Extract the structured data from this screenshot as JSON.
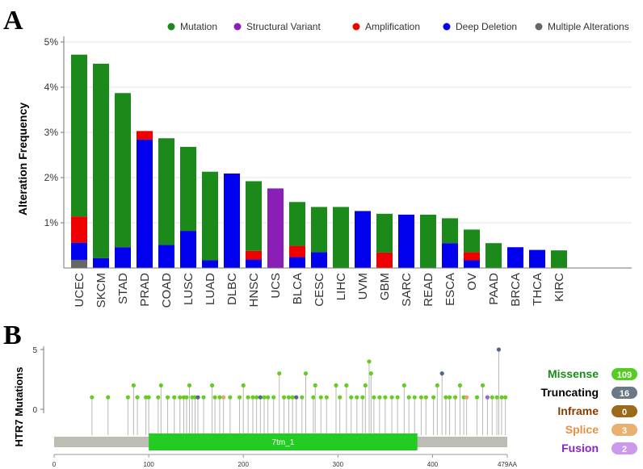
{
  "panel_a": {
    "letter": "A",
    "chart_data": {
      "type": "bar",
      "stacked": true,
      "ylabel": "Alteration Frequency",
      "ylim": [
        0,
        5
      ],
      "yticks": [
        1,
        2,
        3,
        4,
        5
      ],
      "ytick_labels": [
        "1%",
        "2%",
        "3%",
        "4%",
        "5%"
      ],
      "legend_position": "top",
      "categories": [
        "UCEC",
        "SKCM",
        "STAD",
        "PRAD",
        "COAD",
        "LUSC",
        "LUAD",
        "DLBC",
        "HNSC",
        "UCS",
        "BLCA",
        "CESC",
        "LIHC",
        "UVM",
        "GBM",
        "SARC",
        "READ",
        "ESCA",
        "OV",
        "PAAD",
        "BRCA",
        "THCA",
        "KIRC"
      ],
      "series": [
        {
          "name": "Multiple Alterations",
          "color": "#666666",
          "values": [
            0.18,
            0,
            0,
            0,
            0,
            0,
            0,
            0,
            0,
            0,
            0,
            0,
            0,
            0,
            0,
            0,
            0,
            0,
            0,
            0,
            0,
            0,
            0
          ]
        },
        {
          "name": "Deep Deletion",
          "color": "#0000ee",
          "values": [
            0.38,
            0.22,
            0.46,
            2.84,
            0.51,
            0.82,
            0.17,
            2.09,
            0.19,
            0,
            0.24,
            0.35,
            0,
            1.26,
            0,
            1.18,
            0,
            0.55,
            0.17,
            0,
            0.46,
            0.4,
            0
          ]
        },
        {
          "name": "Amplification",
          "color": "#ee0000",
          "values": [
            0.58,
            0,
            0,
            0.19,
            0,
            0,
            0,
            0,
            0.19,
            0,
            0.25,
            0,
            0,
            0,
            0.34,
            0,
            0,
            0,
            0.18,
            0,
            0,
            0,
            0
          ]
        },
        {
          "name": "Structural Variant",
          "color": "#8a1fb8",
          "values": [
            0,
            0,
            0,
            0,
            0,
            0,
            0,
            0,
            0,
            1.76,
            0,
            0,
            0,
            0,
            0,
            0,
            0,
            0,
            0,
            0,
            0,
            0,
            0
          ]
        },
        {
          "name": "Mutation",
          "color": "#1b8a1b",
          "values": [
            3.58,
            4.3,
            3.41,
            0,
            2.36,
            1.86,
            1.96,
            0,
            1.54,
            0,
            0.97,
            1.0,
            1.35,
            0,
            0.86,
            0,
            1.18,
            0.55,
            0.5,
            0.55,
            0,
            0,
            0.39
          ]
        }
      ],
      "legend": [
        {
          "name": "Mutation",
          "color": "#1b8a1b"
        },
        {
          "name": "Structural Variant",
          "color": "#8a1fb8"
        },
        {
          "name": "Amplification",
          "color": "#ee0000"
        },
        {
          "name": "Deep Deletion",
          "color": "#0000ee"
        },
        {
          "name": "Multiple Alterations",
          "color": "#666666"
        }
      ]
    }
  },
  "panel_b": {
    "letter": "B",
    "chart_data": {
      "type": "scatter",
      "subtype": "lollipop",
      "ylabel": "HTR7 Mutations",
      "xlim": [
        0,
        479
      ],
      "ylim": [
        0,
        5
      ],
      "yticks": [
        0,
        5
      ],
      "xticks": [
        0,
        100,
        200,
        300,
        400
      ],
      "end_label": "479AA",
      "domain": {
        "name": "7tm_1",
        "start": 100,
        "end": 384,
        "color": "#22cc22"
      },
      "points": [
        {
          "x": 40,
          "y": 1,
          "t": "m"
        },
        {
          "x": 57,
          "y": 1,
          "t": "m"
        },
        {
          "x": 78,
          "y": 1,
          "t": "m"
        },
        {
          "x": 84,
          "y": 2,
          "t": "m"
        },
        {
          "x": 88,
          "y": 1,
          "t": "m"
        },
        {
          "x": 97,
          "y": 1,
          "t": "m"
        },
        {
          "x": 100,
          "y": 1,
          "t": "m"
        },
        {
          "x": 110,
          "y": 1,
          "t": "m"
        },
        {
          "x": 113,
          "y": 2,
          "t": "m"
        },
        {
          "x": 120,
          "y": 1,
          "t": "m"
        },
        {
          "x": 127,
          "y": 1,
          "t": "m"
        },
        {
          "x": 133,
          "y": 1,
          "t": "m"
        },
        {
          "x": 137,
          "y": 1,
          "t": "m"
        },
        {
          "x": 140,
          "y": 1,
          "t": "m"
        },
        {
          "x": 143,
          "y": 2,
          "t": "m"
        },
        {
          "x": 146,
          "y": 1,
          "t": "m"
        },
        {
          "x": 149,
          "y": 1,
          "t": "m"
        },
        {
          "x": 152,
          "y": 1,
          "t": "t"
        },
        {
          "x": 158,
          "y": 1,
          "t": "m"
        },
        {
          "x": 167,
          "y": 2,
          "t": "m"
        },
        {
          "x": 170,
          "y": 1,
          "t": "m"
        },
        {
          "x": 175,
          "y": 1,
          "t": "m"
        },
        {
          "x": 179,
          "y": 1,
          "t": "s"
        },
        {
          "x": 186,
          "y": 1,
          "t": "m"
        },
        {
          "x": 196,
          "y": 1,
          "t": "m"
        },
        {
          "x": 200,
          "y": 2,
          "t": "m"
        },
        {
          "x": 205,
          "y": 1,
          "t": "m"
        },
        {
          "x": 210,
          "y": 1,
          "t": "m"
        },
        {
          "x": 214,
          "y": 1,
          "t": "m"
        },
        {
          "x": 218,
          "y": 1,
          "t": "t"
        },
        {
          "x": 222,
          "y": 1,
          "t": "m"
        },
        {
          "x": 226,
          "y": 1,
          "t": "m"
        },
        {
          "x": 232,
          "y": 1,
          "t": "m"
        },
        {
          "x": 238,
          "y": 3,
          "t": "m"
        },
        {
          "x": 243,
          "y": 1,
          "t": "m"
        },
        {
          "x": 248,
          "y": 1,
          "t": "m"
        },
        {
          "x": 252,
          "y": 1,
          "t": "m"
        },
        {
          "x": 256,
          "y": 1,
          "t": "t"
        },
        {
          "x": 262,
          "y": 1,
          "t": "m"
        },
        {
          "x": 266,
          "y": 3,
          "t": "m"
        },
        {
          "x": 274,
          "y": 1,
          "t": "m"
        },
        {
          "x": 276,
          "y": 2,
          "t": "m"
        },
        {
          "x": 282,
          "y": 1,
          "t": "m"
        },
        {
          "x": 288,
          "y": 1,
          "t": "m"
        },
        {
          "x": 298,
          "y": 2,
          "t": "m"
        },
        {
          "x": 302,
          "y": 1,
          "t": "m"
        },
        {
          "x": 309,
          "y": 2,
          "t": "m"
        },
        {
          "x": 314,
          "y": 1,
          "t": "m"
        },
        {
          "x": 320,
          "y": 1,
          "t": "m"
        },
        {
          "x": 326,
          "y": 1,
          "t": "m"
        },
        {
          "x": 329,
          "y": 2,
          "t": "m"
        },
        {
          "x": 333,
          "y": 4,
          "t": "m"
        },
        {
          "x": 335,
          "y": 3,
          "t": "m"
        },
        {
          "x": 338,
          "y": 1,
          "t": "m"
        },
        {
          "x": 344,
          "y": 1,
          "t": "m"
        },
        {
          "x": 350,
          "y": 1,
          "t": "m"
        },
        {
          "x": 357,
          "y": 1,
          "t": "m"
        },
        {
          "x": 363,
          "y": 1,
          "t": "m"
        },
        {
          "x": 370,
          "y": 2,
          "t": "m"
        },
        {
          "x": 375,
          "y": 1,
          "t": "m"
        },
        {
          "x": 381,
          "y": 1,
          "t": "m"
        },
        {
          "x": 388,
          "y": 1,
          "t": "m"
        },
        {
          "x": 393,
          "y": 1,
          "t": "m"
        },
        {
          "x": 401,
          "y": 1,
          "t": "m"
        },
        {
          "x": 405,
          "y": 2,
          "t": "m"
        },
        {
          "x": 410,
          "y": 3,
          "t": "t"
        },
        {
          "x": 414,
          "y": 1,
          "t": "m"
        },
        {
          "x": 418,
          "y": 1,
          "t": "m"
        },
        {
          "x": 424,
          "y": 1,
          "t": "m"
        },
        {
          "x": 429,
          "y": 2,
          "t": "m"
        },
        {
          "x": 433,
          "y": 1,
          "t": "m"
        },
        {
          "x": 436,
          "y": 1,
          "t": "s"
        },
        {
          "x": 447,
          "y": 1,
          "t": "m"
        },
        {
          "x": 453,
          "y": 2,
          "t": "m"
        },
        {
          "x": 458,
          "y": 1,
          "t": "f"
        },
        {
          "x": 463,
          "y": 1,
          "t": "m"
        },
        {
          "x": 468,
          "y": 1,
          "t": "m"
        },
        {
          "x": 470,
          "y": 5,
          "t": "t"
        },
        {
          "x": 473,
          "y": 1,
          "t": "m"
        },
        {
          "x": 477,
          "y": 1,
          "t": "m"
        }
      ],
      "point_colors": {
        "m": "#66cc22",
        "t": "#556688",
        "s": "#e8a070",
        "f": "#9966cc"
      },
      "legend": [
        {
          "label": "Missense",
          "count": "109",
          "color": "#1b8a1b",
          "badge": "#55cc22"
        },
        {
          "label": "Truncating",
          "count": "16",
          "color": "#000000",
          "badge": "#6a7888"
        },
        {
          "label": "Inframe",
          "count": "0",
          "color": "#8b3a00",
          "badge": "#9a6a1a"
        },
        {
          "label": "Splice",
          "count": "3",
          "color": "#e89040",
          "badge": "#eab070"
        },
        {
          "label": "Fusion",
          "count": "2",
          "color": "#8822cc",
          "badge": "#cc99ee"
        }
      ]
    }
  }
}
